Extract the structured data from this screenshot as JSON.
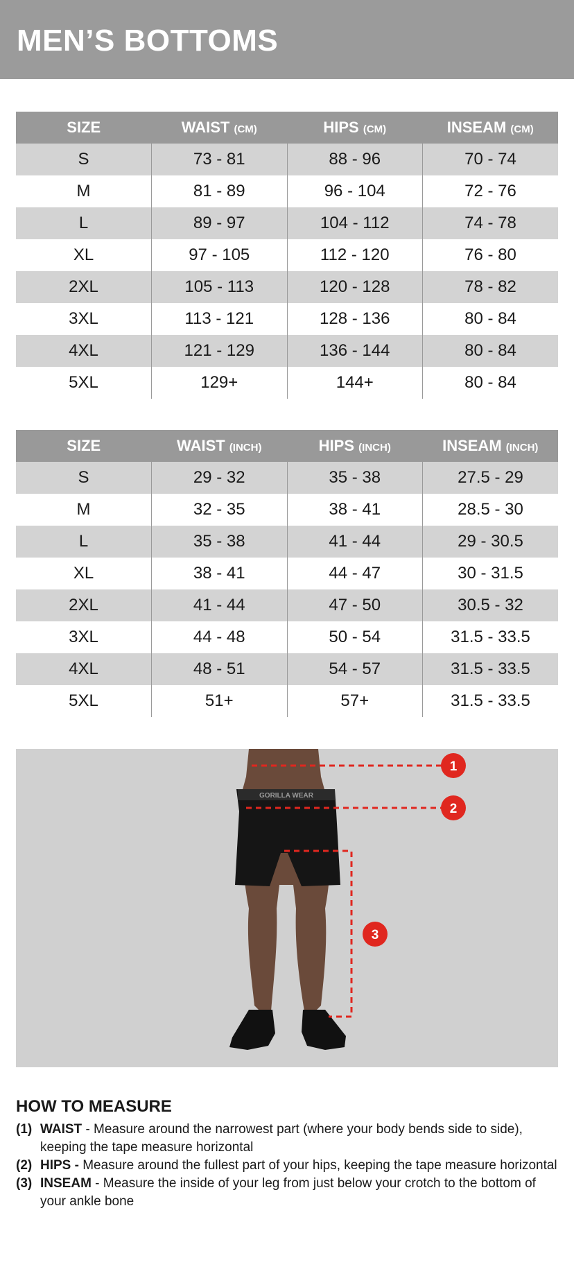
{
  "title": "MEN’S BOTTOMS",
  "tables": [
    {
      "headers": [
        {
          "label": "SIZE",
          "unit": ""
        },
        {
          "label": "WAIST",
          "unit": "(CM)"
        },
        {
          "label": "HIPS",
          "unit": "(CM)"
        },
        {
          "label": "INSEAM",
          "unit": "(CM)"
        }
      ],
      "rows": [
        [
          "S",
          "73 - 81",
          "88 - 96",
          "70 - 74"
        ],
        [
          "M",
          "81 - 89",
          "96 - 104",
          "72 - 76"
        ],
        [
          "L",
          "89 - 97",
          "104 - 112",
          "74 - 78"
        ],
        [
          "XL",
          "97 - 105",
          "112 - 120",
          "76 - 80"
        ],
        [
          "2XL",
          "105 - 113",
          "120 - 128",
          "78 - 82"
        ],
        [
          "3XL",
          "113 - 121",
          "128 - 136",
          "80 - 84"
        ],
        [
          "4XL",
          "121 - 129",
          "136 - 144",
          "80 - 84"
        ],
        [
          "5XL",
          "129+",
          "144+",
          "80 - 84"
        ]
      ]
    },
    {
      "headers": [
        {
          "label": "SIZE",
          "unit": ""
        },
        {
          "label": "WAIST",
          "unit": "(INCH)"
        },
        {
          "label": "HIPS",
          "unit": "(INCH)"
        },
        {
          "label": "INSEAM",
          "unit": "(INCH)"
        }
      ],
      "rows": [
        [
          "S",
          "29 - 32",
          "35 - 38",
          "27.5 - 29"
        ],
        [
          "M",
          "32 - 35",
          "38 - 41",
          "28.5 - 30"
        ],
        [
          "L",
          "35 - 38",
          "41 - 44",
          "29 - 30.5"
        ],
        [
          "XL",
          "38 - 41",
          "44 - 47",
          "30 - 31.5"
        ],
        [
          "2XL",
          "41 - 44",
          "47 - 50",
          "30.5 - 32"
        ],
        [
          "3XL",
          "44 - 48",
          "50 - 54",
          "31.5 - 33.5"
        ],
        [
          "4XL",
          "48 - 51",
          "54 - 57",
          "31.5 - 33.5"
        ],
        [
          "5XL",
          "51+",
          "57+",
          "31.5 - 33.5"
        ]
      ]
    }
  ],
  "figure": {
    "markers": [
      "1",
      "2",
      "3"
    ],
    "waistband_text": "GORILLA WEAR",
    "accent_color": "#e0271f"
  },
  "how_to_measure": {
    "title": "HOW TO MEASURE",
    "items": [
      {
        "num": "(1)",
        "term": "WAIST",
        "text": " - Measure around the narrowest part (where your body bends side to side), keeping the tape measure horizontal"
      },
      {
        "num": "(2)",
        "term": "HIPS -",
        "text": " Measure around the fullest part of your hips, keeping the tape measure horizontal"
      },
      {
        "num": "(3)",
        "term": "INSEAM",
        "text": " - Measure the inside of your leg from just below your crotch to the bottom of your ankle bone"
      }
    ]
  }
}
